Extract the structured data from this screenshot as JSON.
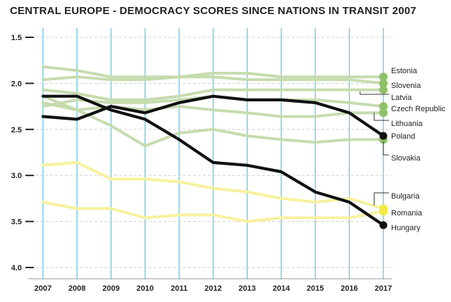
{
  "chart_data": {
    "type": "line",
    "title": "CENTRAL EUROPE - DEMOCRACY SCORES SINCE NATIONS IN TRANSIT 2007",
    "xlabel": "",
    "ylabel": "",
    "x": [
      "2007",
      "2008",
      "2009",
      "2010",
      "2011",
      "2012",
      "2013",
      "2014",
      "2015",
      "2016",
      "2017"
    ],
    "y_ticks": [
      "1.5",
      "2.0",
      "2.5",
      "3.0",
      "3.5",
      "4.0"
    ],
    "ylim": [
      1.5,
      4.0
    ],
    "y_inverted": true,
    "grid": "vertical lines at each year (blue), dashed horizontal lines at each tick (grey)",
    "legend": "series labels at right end of lines",
    "colors": {
      "highlight": "#111111",
      "green": "#c6dcae",
      "green_marker": "#8ec26a",
      "yellow": "#f7f19e",
      "yellow_marker": "#f3ea49",
      "grid_vertical": "#6cc9e6",
      "grid_horizontal": "#cfcfcf"
    },
    "series": [
      {
        "name": "Estonia",
        "group": "green",
        "values": [
          1.82,
          1.86,
          1.93,
          1.93,
          1.93,
          1.89,
          1.89,
          1.93,
          1.93,
          1.93,
          1.93
        ]
      },
      {
        "name": "Slovenia",
        "group": "green",
        "values": [
          1.96,
          1.93,
          1.96,
          1.96,
          1.93,
          1.93,
          1.96,
          1.96,
          1.96,
          1.96,
          2.0
        ]
      },
      {
        "name": "Latvia",
        "group": "green",
        "values": [
          2.07,
          2.11,
          2.18,
          2.18,
          2.14,
          2.07,
          2.07,
          2.07,
          2.07,
          2.07,
          2.07
        ]
      },
      {
        "name": "Czech Republic",
        "group": "green",
        "values": [
          2.25,
          2.18,
          2.21,
          2.21,
          2.18,
          2.14,
          2.18,
          2.18,
          2.18,
          2.21,
          2.25
        ]
      },
      {
        "name": "Lithuania",
        "group": "green",
        "values": [
          2.21,
          2.29,
          2.25,
          2.29,
          2.25,
          2.29,
          2.32,
          2.36,
          2.36,
          2.32,
          2.32
        ]
      },
      {
        "name": "Slovakia",
        "group": "green",
        "values": [
          2.14,
          2.29,
          2.46,
          2.68,
          2.54,
          2.5,
          2.57,
          2.61,
          2.64,
          2.61,
          2.61
        ]
      },
      {
        "name": "Bulgaria",
        "group": "yellow",
        "values": [
          2.89,
          2.86,
          3.04,
          3.04,
          3.07,
          3.14,
          3.18,
          3.25,
          3.29,
          3.25,
          3.36
        ]
      },
      {
        "name": "Romania",
        "group": "yellow",
        "values": [
          3.29,
          3.36,
          3.36,
          3.46,
          3.43,
          3.43,
          3.5,
          3.46,
          3.46,
          3.46,
          3.39
        ]
      },
      {
        "name": "Poland",
        "group": "highlight",
        "values": [
          2.36,
          2.39,
          2.25,
          2.32,
          2.21,
          2.14,
          2.18,
          2.18,
          2.21,
          2.32,
          2.57
        ]
      },
      {
        "name": "Hungary",
        "group": "highlight",
        "values": [
          2.14,
          2.14,
          2.29,
          2.39,
          2.61,
          2.86,
          2.89,
          2.96,
          3.18,
          3.29,
          3.54
        ]
      }
    ]
  }
}
